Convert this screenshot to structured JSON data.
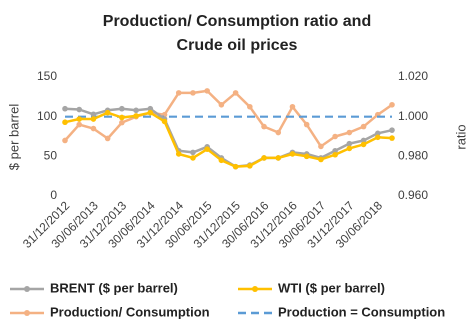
{
  "chart_data": {
    "type": "line",
    "title": "Production/ Consumption ratio and Crude oil prices",
    "y_label": "$ per barrel",
    "y2_label": "ratio",
    "categories": [
      "31/12/2012",
      null,
      "30/06/2013",
      null,
      "31/12/2013",
      null,
      "30/06/2014",
      null,
      "31/12/2014",
      null,
      "30/06/2015",
      null,
      "31/12/2015",
      null,
      "30/06/2016",
      null,
      "31/12/2016",
      null,
      "30/06/2017",
      null,
      "31/12/2017",
      null,
      "30/06/2018",
      null
    ],
    "ylim": [
      0,
      150
    ],
    "yticks": [
      0,
      50,
      100,
      150
    ],
    "y2lim": [
      0.96,
      1.02
    ],
    "y2ticks": [
      {
        "value": 0.96,
        "label": "0.960"
      },
      {
        "value": 0.98,
        "label": "0.980"
      },
      {
        "value": 1.0,
        "label": "1.000"
      },
      {
        "value": 1.02,
        "label": "1.020"
      }
    ],
    "series": [
      {
        "name": "BRENT ($ per barrel)",
        "color": "#a5a5a5",
        "marker": true,
        "values": [
          110,
          109,
          103,
          108,
          110,
          108,
          110,
          97,
          57,
          55,
          62,
          48,
          37,
          39,
          48,
          48,
          55,
          53,
          48,
          57,
          66,
          70,
          79,
          83
        ]
      },
      {
        "name": "WTI ($ per barrel)",
        "color": "#ffc000",
        "marker": true,
        "values": [
          93,
          97,
          97,
          105,
          99,
          101,
          105,
          94,
          53,
          48,
          59,
          45,
          37,
          38,
          48,
          48,
          53,
          50,
          46,
          52,
          60,
          65,
          74,
          73
        ]
      },
      {
        "name": "Production/ Consumption",
        "color": "#f4b183",
        "marker": true,
        "axis": "y2",
        "values": [
          0.988,
          0.996,
          0.994,
          0.989,
          0.997,
          1.0,
          1.002,
          1.001,
          1.012,
          1.012,
          1.013,
          1.006,
          1.012,
          1.005,
          0.995,
          0.992,
          1.005,
          0.996,
          0.985,
          0.99,
          0.992,
          0.995,
          1.001,
          1.006
        ]
      },
      {
        "name": "Production = Consumption",
        "color": "#5b9bd5",
        "marker": false,
        "dashed": true,
        "axis": "y2",
        "values": [
          1.0,
          1.0,
          1.0,
          1.0,
          1.0,
          1.0,
          1.0,
          1.0,
          1.0,
          1.0,
          1.0,
          1.0,
          1.0,
          1.0,
          1.0,
          1.0,
          1.0,
          1.0,
          1.0,
          1.0,
          1.0,
          1.0,
          1.0,
          1.0
        ]
      }
    ]
  }
}
